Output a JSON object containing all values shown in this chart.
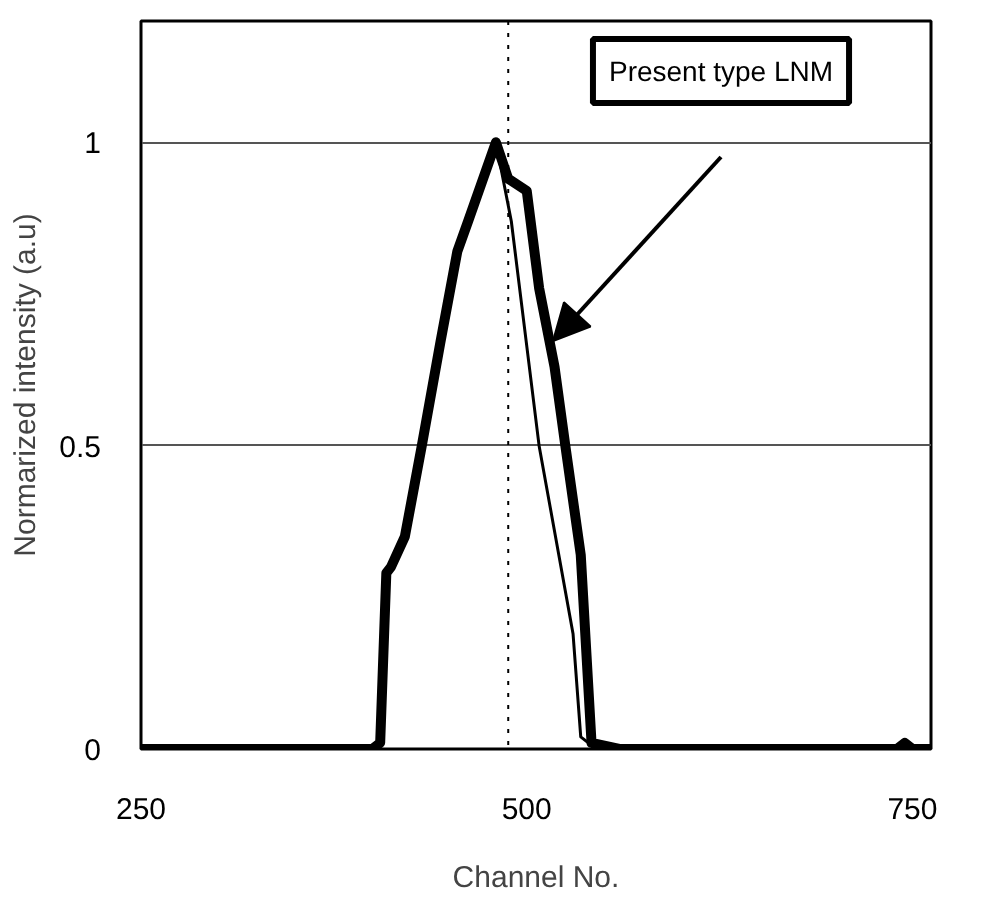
{
  "chart_data": {
    "type": "line",
    "xlabel": "Channel No.",
    "ylabel": "Normarized intensity (a.u)",
    "xlim": [
      250,
      762
    ],
    "ylim": [
      0,
      1.2
    ],
    "xticks": [
      250,
      500,
      750
    ],
    "yticks": [
      0,
      0.5,
      1
    ],
    "grid": "y",
    "series": [
      {
        "color": "#000000",
        "x": [
          250,
          300,
          350,
          400,
          405,
          409,
          412,
          421,
          432,
          444,
          455,
          462,
          480,
          488,
          500,
          508,
          518,
          525,
          535,
          542,
          560,
          650,
          740,
          745,
          750,
          762
        ],
        "values": [
          0,
          0,
          0,
          0,
          0.01,
          0.29,
          0.3,
          0.35,
          0.5,
          0.67,
          0.82,
          0.87,
          1.0,
          0.94,
          0.92,
          0.76,
          0.63,
          0.5,
          0.32,
          0.01,
          0,
          0,
          0,
          0.01,
          0,
          0
        ]
      },
      {
        "color": "#000000",
        "x": [
          250,
          400,
          405,
          409,
          412,
          421,
          432,
          444,
          455,
          462,
          480,
          490,
          508,
          530,
          535,
          545,
          762
        ],
        "values": [
          0,
          0,
          0.01,
          0.29,
          0.3,
          0.35,
          0.5,
          0.67,
          0.82,
          0.87,
          1.0,
          0.87,
          0.5,
          0.19,
          0.02,
          0,
          0
        ]
      }
    ],
    "ref_lines": [
      {
        "axis": "x",
        "value": 488,
        "color": "#000000",
        "line_style": "dotted"
      }
    ],
    "annotations": [
      "Present type LNM"
    ]
  }
}
